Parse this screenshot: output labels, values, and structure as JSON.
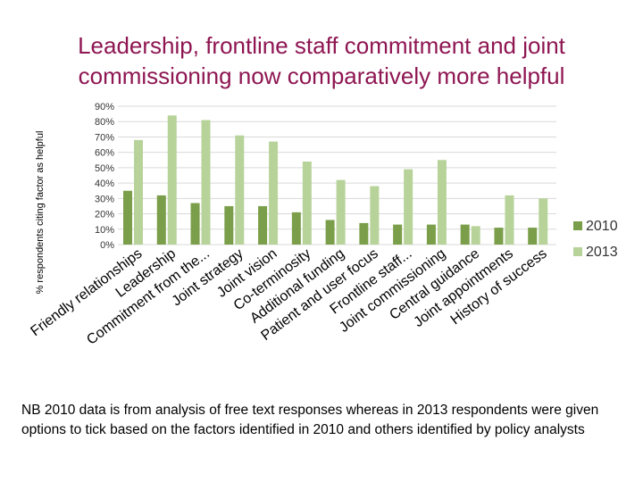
{
  "title": {
    "line1": "Leadership, frontline staff commitment and joint",
    "line2": "commissioning now comparatively more helpful"
  },
  "colors": {
    "s2010": "#7a9e49",
    "s2013": "#b7d39a",
    "title": "#8e1652",
    "grid": "#d9d9d9"
  },
  "chart_data": {
    "type": "bar",
    "title": "",
    "xlabel": "",
    "ylabel": "% respondents citing factor as helpful",
    "ylim": [
      0,
      90
    ],
    "yticks": [
      "0%",
      "10%",
      "20%",
      "30%",
      "40%",
      "50%",
      "60%",
      "70%",
      "80%",
      "90%"
    ],
    "grid": true,
    "legend": "right",
    "categories": [
      "Friendly relationships",
      "Leadership",
      "Commitment from the...",
      "Joint strategy",
      "Joint vision",
      "Co-terminosity",
      "Additional funding",
      "Patient and user focus",
      "Frontline staff...",
      "Joint commissioning",
      "Central guidance",
      "Joint appointments",
      "History of success"
    ],
    "series": [
      {
        "name": "2010",
        "values": [
          35,
          32,
          27,
          25,
          25,
          21,
          16,
          14,
          13,
          13,
          13,
          11,
          11
        ]
      },
      {
        "name": "2013",
        "values": [
          68,
          84,
          81,
          71,
          67,
          54,
          42,
          38,
          49,
          55,
          12,
          32,
          30
        ]
      }
    ]
  },
  "note": "NB  2010 data is from analysis of free text responses whereas in 2013 respondents were given options to tick based on the factors identified in 2010 and others identified by policy analysts"
}
